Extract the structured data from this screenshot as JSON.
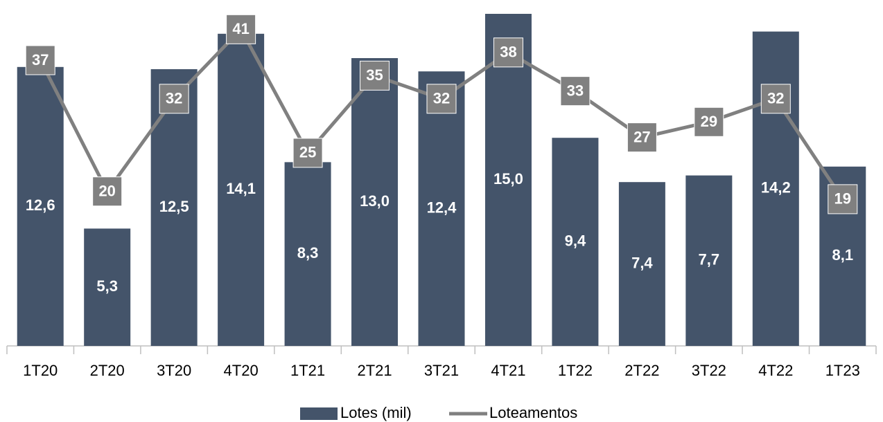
{
  "chart_data": {
    "type": "bar",
    "categories": [
      "1T20",
      "2T20",
      "3T20",
      "4T20",
      "1T21",
      "2T21",
      "3T21",
      "4T21",
      "1T22",
      "2T22",
      "3T22",
      "4T22",
      "1T23"
    ],
    "series": [
      {
        "name": "Lotes (mil)",
        "type": "bar",
        "color": "#44546a",
        "values": [
          12.6,
          5.3,
          12.5,
          14.1,
          8.3,
          13.0,
          12.4,
          15.0,
          9.4,
          7.4,
          7.7,
          14.2,
          8.1
        ],
        "value_labels": [
          "12,6",
          "5,3",
          "12,5",
          "14,1",
          "8,3",
          "13,0",
          "12,4",
          "15,0",
          "9,4",
          "7,4",
          "7,7",
          "14,2",
          "8,1"
        ]
      },
      {
        "name": "Loteamentos",
        "type": "line",
        "axis": "y2",
        "color": "#808080",
        "values": [
          37,
          20,
          32,
          41,
          25,
          35,
          32,
          38,
          33,
          27,
          29,
          32,
          19
        ]
      }
    ],
    "ylim": [
      0,
      15
    ],
    "y2lim": [
      0,
      43
    ]
  }
}
